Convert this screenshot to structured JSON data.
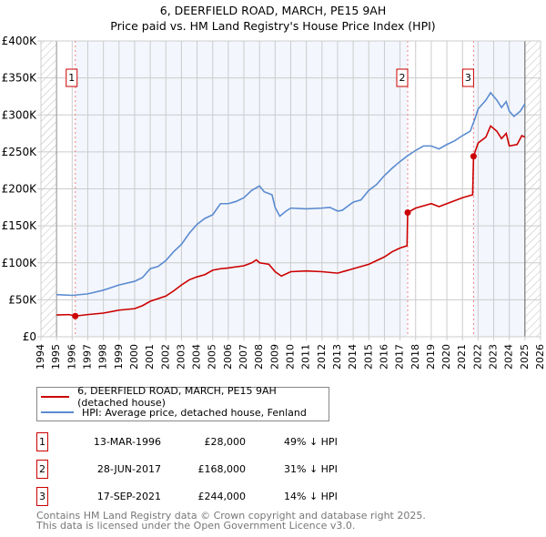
{
  "chart_data": {
    "type": "line",
    "title": "6, DEERFIELD ROAD, MARCH, PE15 9AH",
    "subtitle": "Price paid vs. HM Land Registry's House Price Index (HPI)",
    "xlim": [
      1994,
      2026
    ],
    "ylim": [
      0,
      400000
    ],
    "x_ticks": [
      "1994",
      "1995",
      "1996",
      "1997",
      "1998",
      "1999",
      "2000",
      "2001",
      "2002",
      "2003",
      "2004",
      "2005",
      "2006",
      "2007",
      "2008",
      "2009",
      "2010",
      "2011",
      "2012",
      "2013",
      "2014",
      "2015",
      "2016",
      "2017",
      "2018",
      "2019",
      "2020",
      "2021",
      "2022",
      "2023",
      "2024",
      "2025",
      "2026"
    ],
    "y_ticks": [
      {
        "v": 0,
        "label": "£0"
      },
      {
        "v": 50000,
        "label": "£50K"
      },
      {
        "v": 100000,
        "label": "£100K"
      },
      {
        "v": 150000,
        "label": "£150K"
      },
      {
        "v": 200000,
        "label": "£200K"
      },
      {
        "v": 250000,
        "label": "£250K"
      },
      {
        "v": 300000,
        "label": "£300K"
      },
      {
        "v": 350000,
        "label": "£350K"
      },
      {
        "v": 400000,
        "label": "£400K"
      }
    ],
    "grid": true,
    "series": [
      {
        "name": "6, DEERFIELD ROAD, MARCH, PE15 9AH (detached house)",
        "color": "#cc0000",
        "x": [
          1995,
          1995.8,
          1996.2,
          1997,
          1998,
          1999,
          2000,
          2000.5,
          2001,
          2002,
          2002.5,
          2003,
          2003.5,
          2004,
          2004.5,
          2005,
          2005.5,
          2006,
          2007,
          2007.5,
          2007.8,
          2008,
          2008.6,
          2009,
          2009.4,
          2010,
          2011,
          2012,
          2013,
          2013.5,
          2014,
          2015,
          2016,
          2016.5,
          2017,
          2017.45,
          2017.49,
          2018,
          2019,
          2019.5,
          2020,
          2020.5,
          2021,
          2021.65,
          2021.71,
          2022,
          2022.5,
          2022.8,
          2023.2,
          2023.5,
          2023.8,
          2024,
          2024.5,
          2024.8,
          2025
        ],
        "y": [
          29500,
          30000,
          28000,
          30000,
          32000,
          36000,
          38000,
          42000,
          48000,
          55000,
          62000,
          70000,
          77000,
          81000,
          84000,
          90000,
          92000,
          93000,
          96000,
          100000,
          104000,
          100000,
          98000,
          88000,
          82000,
          88000,
          89000,
          88000,
          86000,
          89000,
          92000,
          98000,
          108000,
          115000,
          120000,
          123000,
          168000,
          174000,
          180000,
          176000,
          180000,
          184000,
          188000,
          192000,
          244000,
          262000,
          270000,
          285000,
          278000,
          268000,
          275000,
          258000,
          260000,
          272000,
          270000
        ]
      },
      {
        "name": "HPI: Average price, detached house, Fenland",
        "color": "#5b8bd0",
        "x": [
          1995,
          1996,
          1997,
          1998,
          1999,
          2000,
          2000.5,
          2001,
          2001.5,
          2002,
          2002.5,
          2003,
          2003.5,
          2004,
          2004.5,
          2005,
          2005.5,
          2006,
          2006.5,
          2007,
          2007.5,
          2008,
          2008.3,
          2008.8,
          2009,
          2009.3,
          2009.7,
          2010,
          2011,
          2012,
          2012.5,
          2013,
          2013.3,
          2014,
          2014.5,
          2015,
          2015.5,
          2016,
          2016.5,
          2017,
          2017.5,
          2018,
          2018.5,
          2019,
          2019.5,
          2020,
          2020.5,
          2021,
          2021.5,
          2021.8,
          2022,
          2022.5,
          2022.8,
          2023.2,
          2023.5,
          2023.8,
          2024,
          2024.3,
          2024.7,
          2025
        ],
        "y": [
          57000,
          56000,
          58000,
          63000,
          70000,
          75000,
          80000,
          92000,
          95000,
          103000,
          115000,
          125000,
          140000,
          152000,
          160000,
          165000,
          180000,
          180000,
          183000,
          188000,
          198000,
          204000,
          196000,
          192000,
          175000,
          163000,
          170000,
          174000,
          173000,
          174000,
          175000,
          170000,
          171000,
          182000,
          185000,
          198000,
          206000,
          218000,
          228000,
          237000,
          245000,
          252000,
          258000,
          258000,
          254000,
          260000,
          265000,
          272000,
          278000,
          295000,
          308000,
          320000,
          330000,
          320000,
          310000,
          318000,
          305000,
          298000,
          305000,
          315000
        ]
      }
    ],
    "annotations": [
      {
        "label": "1",
        "x": 1996.2,
        "y": 28000
      },
      {
        "label": "2",
        "x": 2017.49,
        "y": 168000
      },
      {
        "label": "3",
        "x": 2021.71,
        "y": 244000
      }
    ]
  },
  "legend": {
    "items": [
      "6, DEERFIELD ROAD, MARCH, PE15 9AH (detached house)",
      "HPI: Average price, detached house, Fenland"
    ]
  },
  "transactions": [
    {
      "num": "1",
      "date": "13-MAR-1996",
      "price": "£28,000",
      "hpi": "49% ↓ HPI"
    },
    {
      "num": "2",
      "date": "28-JUN-2017",
      "price": "£168,000",
      "hpi": "31% ↓ HPI"
    },
    {
      "num": "3",
      "date": "17-SEP-2021",
      "price": "£244,000",
      "hpi": "14% ↓ HPI"
    }
  ],
  "footer": [
    "Contains HM Land Registry data © Crown copyright and database right 2025.",
    "This data is licensed under the Open Government Licence v3.0."
  ]
}
